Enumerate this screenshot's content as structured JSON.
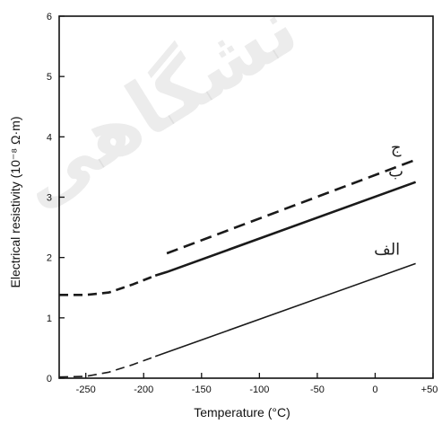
{
  "chart_data": {
    "type": "line",
    "xlabel": "Temperature (°C)",
    "ylabel": "Electrical resistivity (10⁻⁸ Ω·m)",
    "xlim": [
      -273,
      50
    ],
    "ylim": [
      0,
      6
    ],
    "x_ticks": [
      {
        "value": -250,
        "label": "-250"
      },
      {
        "value": -200,
        "label": "-200"
      },
      {
        "value": -150,
        "label": "-150"
      },
      {
        "value": -100,
        "label": "-100"
      },
      {
        "value": -50,
        "label": "-50"
      },
      {
        "value": 0,
        "label": "0"
      },
      {
        "value": 50,
        "label": "+50"
      }
    ],
    "y_ticks": [
      {
        "value": 0,
        "label": "0"
      },
      {
        "value": 1,
        "label": "1"
      },
      {
        "value": 2,
        "label": "2"
      },
      {
        "value": 3,
        "label": "3"
      },
      {
        "value": 4,
        "label": "4"
      },
      {
        "value": 5,
        "label": "5"
      },
      {
        "value": 6,
        "label": "6"
      }
    ],
    "grid": false,
    "legend": "none",
    "series": [
      {
        "name": "ج",
        "style": "dashed",
        "stroke_color": "#1a1a1a",
        "points": [
          [
            -180,
            2.07
          ],
          [
            35,
            3.62
          ]
        ]
      },
      {
        "name": "ب",
        "style": "solid-thick",
        "stroke_color": "#1a1a1a",
        "points": [
          [
            -273,
            1.38
          ],
          [
            -250,
            1.38
          ],
          [
            -230,
            1.42
          ],
          [
            -210,
            1.55
          ],
          [
            -190,
            1.7
          ],
          [
            -180,
            1.76
          ],
          [
            35,
            3.25
          ]
        ],
        "dashed_until": -190
      },
      {
        "name": "الف",
        "style": "solid",
        "stroke_color": "#1a1a1a",
        "points": [
          [
            -273,
            0.02
          ],
          [
            -250,
            0.03
          ],
          [
            -230,
            0.1
          ],
          [
            -210,
            0.22
          ],
          [
            -190,
            0.36
          ],
          [
            35,
            1.9
          ]
        ],
        "dashed_until": -195
      }
    ],
    "watermark_text": "نشگاهی"
  },
  "colors": {
    "axis": "#111111",
    "line": "#1a1a1a",
    "watermark": "#c8c8c8"
  }
}
